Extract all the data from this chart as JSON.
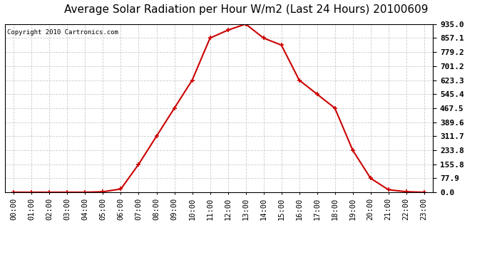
{
  "title": "Average Solar Radiation per Hour W/m2 (Last 24 Hours) 20100609",
  "copyright": "Copyright 2010 Cartronics.com",
  "hours": [
    "00:00",
    "01:00",
    "02:00",
    "03:00",
    "04:00",
    "05:00",
    "06:00",
    "07:00",
    "08:00",
    "09:00",
    "10:00",
    "11:00",
    "12:00",
    "13:00",
    "14:00",
    "15:00",
    "16:00",
    "17:00",
    "18:00",
    "19:00",
    "20:00",
    "21:00",
    "22:00",
    "23:00"
  ],
  "values": [
    0.0,
    0.0,
    0.0,
    0.0,
    0.0,
    3.0,
    18.0,
    155.8,
    311.7,
    467.5,
    623.3,
    857.1,
    901.0,
    935.0,
    857.1,
    818.0,
    623.3,
    545.4,
    467.5,
    233.8,
    77.9,
    14.0,
    3.0,
    0.0
  ],
  "yticks": [
    0.0,
    77.9,
    155.8,
    233.8,
    311.7,
    389.6,
    467.5,
    545.4,
    623.3,
    701.2,
    779.2,
    857.1,
    935.0
  ],
  "ytick_labels": [
    "0.0",
    "77.9",
    "155.8",
    "233.8",
    "311.7",
    "389.6",
    "467.5",
    "545.4",
    "623.3",
    "701.2",
    "779.2",
    "857.1",
    "935.0"
  ],
  "line_color": "#cc0000",
  "marker": "+",
  "marker_size": 5,
  "marker_linewidth": 1.2,
  "line_width": 1.5,
  "plot_bg_color": "#ffffff",
  "fig_bg_color": "#ffffff",
  "grid_color": "#cccccc",
  "title_fontsize": 11,
  "copyright_fontsize": 6.5,
  "tick_fontsize": 7.5,
  "ytick_fontsize": 8,
  "ylim_min": 0.0,
  "ylim_max": 935.0
}
